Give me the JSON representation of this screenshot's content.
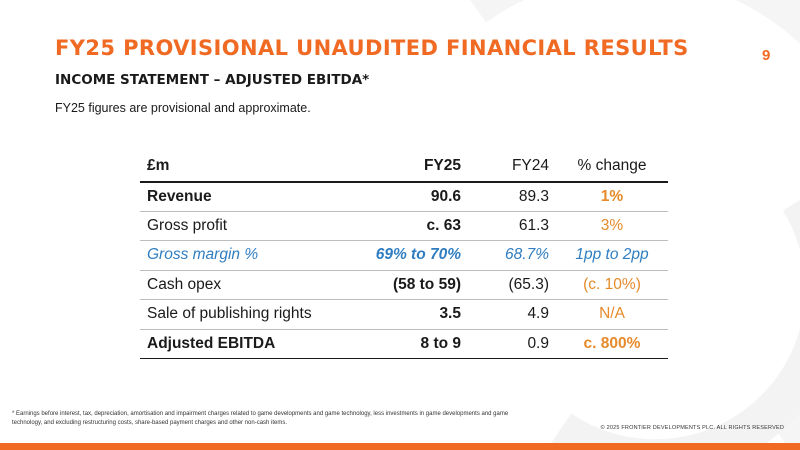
{
  "slide": {
    "title": "FY25 PROVISIONAL UNAUDITED FINANCIAL RESULTS",
    "page_number": "9",
    "subtitle": "INCOME STATEMENT – ADJUSTED EBITDA*",
    "note": "FY25 figures are provisional and approximate."
  },
  "table": {
    "headers": [
      "£m",
      "FY25",
      "FY24",
      "% change"
    ],
    "rows": [
      {
        "label": "Revenue",
        "fy25": "90.6",
        "fy24": "89.3",
        "change": "1%"
      },
      {
        "label": "Gross profit",
        "fy25": "c. 63",
        "fy24": "61.3",
        "change": "3%"
      },
      {
        "label": "Gross margin %",
        "fy25": "69% to 70%",
        "fy24": "68.7%",
        "change": "1pp to 2pp"
      },
      {
        "label": "Cash opex",
        "fy25": "(58 to 59)",
        "fy24": "(65.3)",
        "change": "(c. 10%)"
      },
      {
        "label": "Sale of publishing rights",
        "fy25": "3.5",
        "fy24": "4.9",
        "change": "N/A"
      },
      {
        "label": "Adjusted EBITDA",
        "fy25": "8 to 9",
        "fy24": "0.9",
        "change": "c. 800%"
      }
    ]
  },
  "footer": {
    "footnote": "* Earnings before interest, tax, depreciation, amortisation and impairment charges related to game developments and game technology, less investments in game developments and game technology, and excluding restructuring costs, share-based payment charges and other non-cash items.",
    "copyright": "© 2025 FRONTIER DEVELOPMENTS PLC. ALL RIGHTS RESERVED"
  },
  "colors": {
    "accent": "#f06a23",
    "change_text": "#e68a2a",
    "margin_row": "#2f7dc0"
  }
}
